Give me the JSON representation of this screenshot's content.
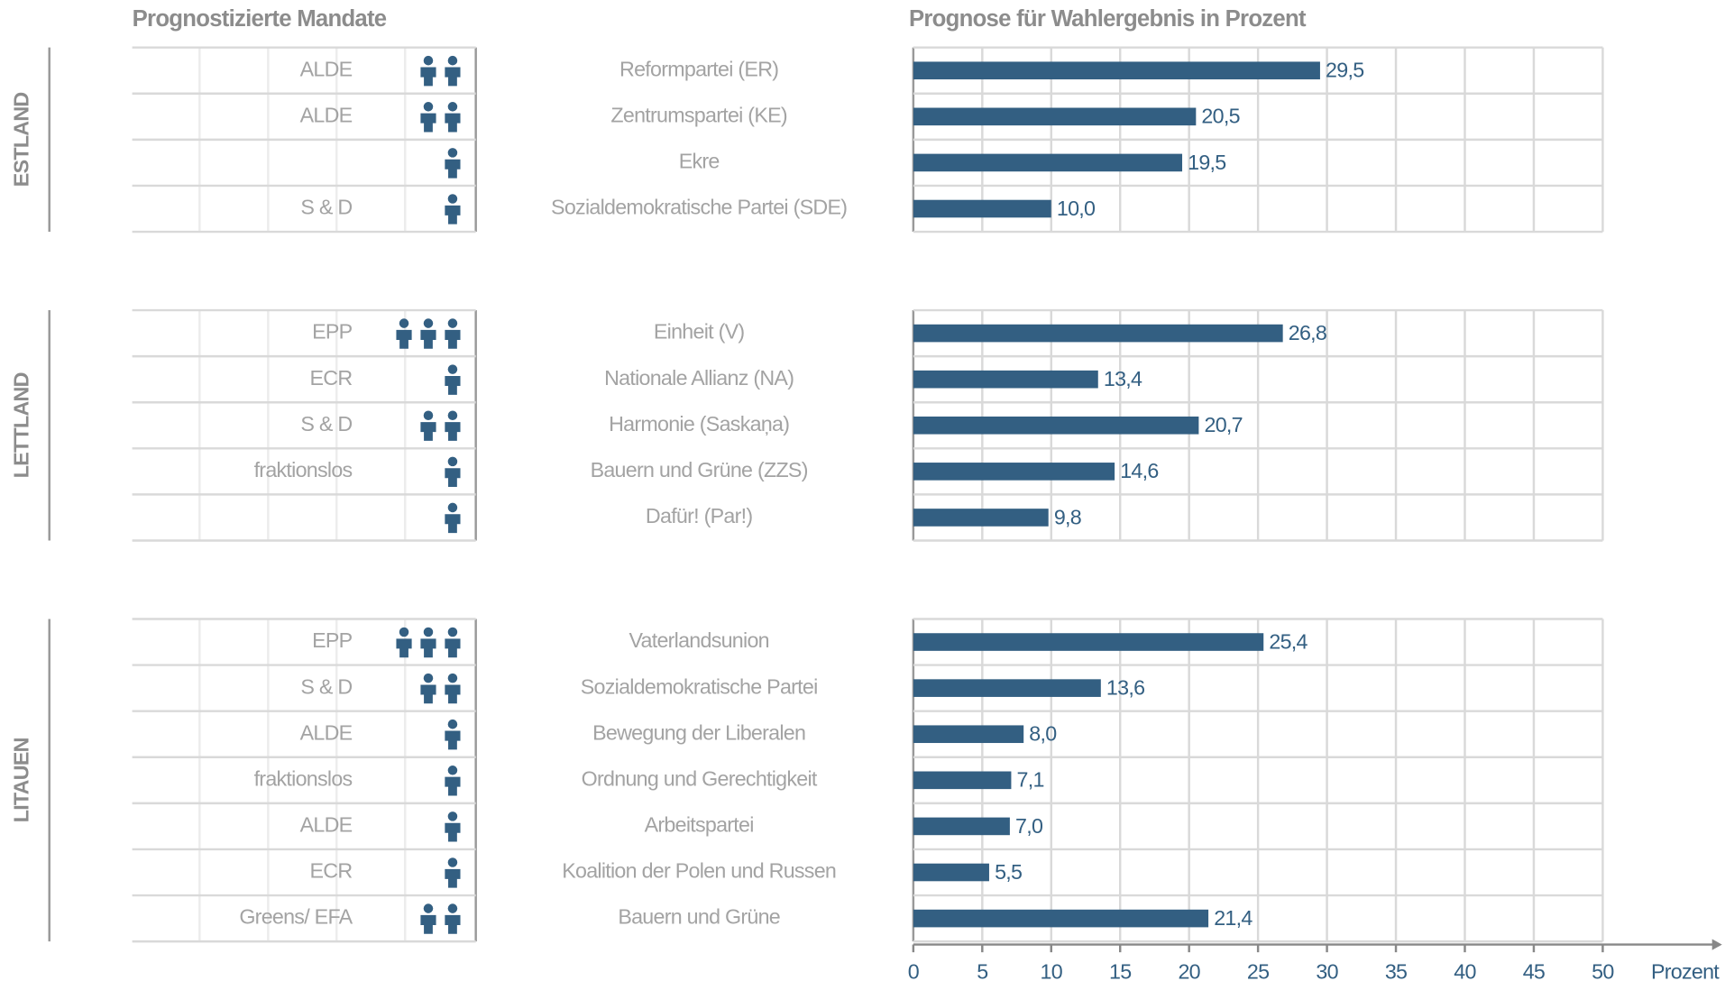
{
  "chart_data": {
    "type": "bar",
    "orientation": "horizontal",
    "title_left": "Prognostizierte Mandate",
    "title": "Prognose für Wahlergebnis in Prozent",
    "x_label": "Prozent",
    "xlim": [
      0,
      50
    ],
    "xticks": [
      0,
      5,
      10,
      15,
      20,
      25,
      30,
      35,
      40,
      45,
      50
    ],
    "color": "#335f82",
    "grid": true,
    "groups": [
      {
        "name": "ESTLAND",
        "categories": [
          "Reformpartei (ER)",
          "Zentrumspartei (KE)",
          "Ekre",
          "Sozialdemokratische Partei (SDE)"
        ],
        "values": [
          29.5,
          20.5,
          19.5,
          10.0
        ],
        "value_labels": [
          "29,5",
          "20,5",
          "19,5",
          "10,0"
        ],
        "factions": [
          "ALDE",
          "ALDE",
          null,
          "S & D"
        ],
        "seats": [
          2,
          2,
          1,
          1
        ]
      },
      {
        "name": "LETTLAND",
        "categories": [
          "Einheit (V)",
          "Nationale Allianz (NA)",
          "Harmonie (Saskaņa)",
          "Bauern und Grüne (ZZS)",
          "Dafür! (Par!)"
        ],
        "values": [
          26.8,
          13.4,
          20.7,
          14.6,
          9.8
        ],
        "value_labels": [
          "26,8",
          "13,4",
          "20,7",
          "14,6",
          "9,8"
        ],
        "factions": [
          "EPP",
          "ECR",
          "S & D",
          "fraktionslos",
          null
        ],
        "seats": [
          3,
          1,
          2,
          1,
          1
        ]
      },
      {
        "name": "LITAUEN",
        "categories": [
          "Vaterlandsunion",
          "Sozialdemokratische Partei",
          "Bewegung der Liberalen",
          "Ordnung und Gerechtigkeit",
          "Arbeitspartei",
          "Koalition der Polen und Russen",
          "Bauern und Grüne"
        ],
        "values": [
          25.4,
          13.6,
          8.0,
          7.1,
          7.0,
          5.5,
          21.4
        ],
        "value_labels": [
          "25,4",
          "13,6",
          "8,0",
          "7,1",
          "7,0",
          "5,5",
          "21,4"
        ],
        "factions": [
          "EPP",
          "S & D",
          "ALDE",
          "fraktionslos",
          "ALDE",
          "ECR",
          "Greens/ EFA"
        ],
        "seats": [
          3,
          2,
          1,
          1,
          1,
          1,
          2
        ]
      }
    ]
  }
}
